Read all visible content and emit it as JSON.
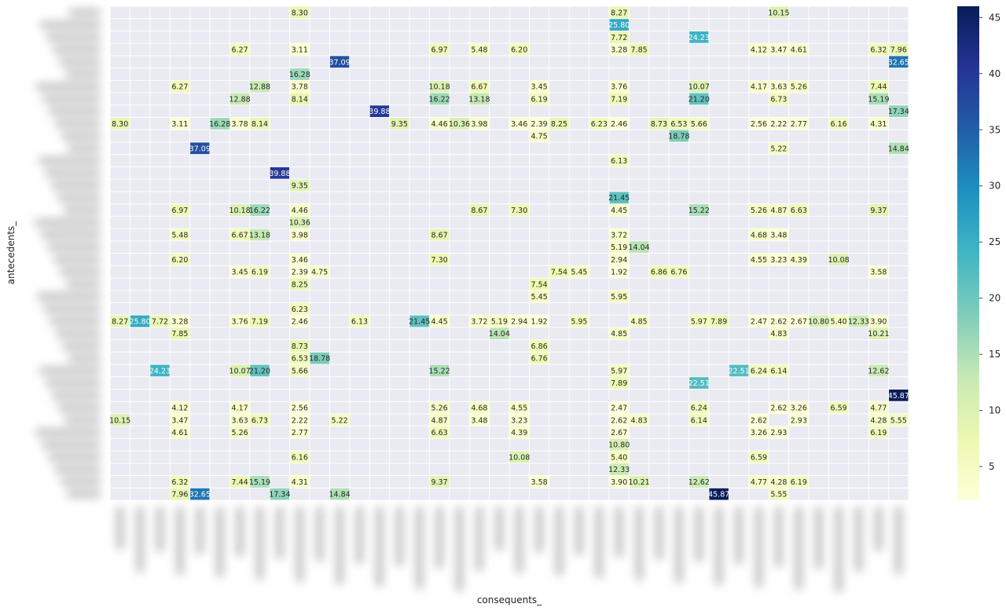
{
  "chart_data": {
    "type": "heatmap",
    "title": "",
    "xlabel": "consequents_",
    "ylabel": "antecedents_",
    "n_rows": 40,
    "n_cols": 40,
    "row_labels_visible": false,
    "col_labels_visible": false,
    "colorbar": {
      "min": 2,
      "max": 46,
      "ticks": [
        5,
        10,
        15,
        20,
        25,
        30,
        35,
        40,
        45
      ],
      "colormap": "YlGnBu"
    },
    "cells": [
      [
        0,
        9,
        8.3
      ],
      [
        0,
        25,
        8.27
      ],
      [
        0,
        33,
        10.15
      ],
      [
        1,
        25,
        25.8
      ],
      [
        2,
        25,
        7.72
      ],
      [
        2,
        29,
        24.23
      ],
      [
        3,
        6,
        6.27
      ],
      [
        3,
        9,
        3.11
      ],
      [
        3,
        16,
        6.97
      ],
      [
        3,
        18,
        5.48
      ],
      [
        3,
        20,
        6.2
      ],
      [
        3,
        25,
        3.28
      ],
      [
        3,
        26,
        7.85
      ],
      [
        3,
        32,
        4.12
      ],
      [
        3,
        33,
        3.47
      ],
      [
        3,
        34,
        4.61
      ],
      [
        3,
        38,
        6.32
      ],
      [
        3,
        39,
        7.96
      ],
      [
        4,
        11,
        37.09
      ],
      [
        4,
        39,
        32.65
      ],
      [
        5,
        9,
        16.28
      ],
      [
        6,
        3,
        6.27
      ],
      [
        6,
        7,
        12.88
      ],
      [
        6,
        9,
        3.78
      ],
      [
        6,
        16,
        10.18
      ],
      [
        6,
        18,
        6.67
      ],
      [
        6,
        21,
        3.45
      ],
      [
        6,
        25,
        3.76
      ],
      [
        6,
        29,
        10.07
      ],
      [
        6,
        32,
        4.17
      ],
      [
        6,
        33,
        3.63
      ],
      [
        6,
        34,
        5.26
      ],
      [
        6,
        38,
        7.44
      ],
      [
        7,
        6,
        12.88
      ],
      [
        7,
        9,
        8.14
      ],
      [
        7,
        16,
        16.22
      ],
      [
        7,
        18,
        13.18
      ],
      [
        7,
        21,
        6.19
      ],
      [
        7,
        25,
        7.19
      ],
      [
        7,
        29,
        21.2
      ],
      [
        7,
        33,
        6.73
      ],
      [
        7,
        38,
        15.19
      ],
      [
        8,
        13,
        39.88
      ],
      [
        8,
        39,
        17.34
      ],
      [
        9,
        0,
        8.3
      ],
      [
        9,
        3,
        3.11
      ],
      [
        9,
        5,
        16.28
      ],
      [
        9,
        6,
        3.78
      ],
      [
        9,
        7,
        8.14
      ],
      [
        9,
        14,
        9.35
      ],
      [
        9,
        16,
        4.46
      ],
      [
        9,
        17,
        10.36
      ],
      [
        9,
        18,
        3.98
      ],
      [
        9,
        20,
        3.46
      ],
      [
        9,
        21,
        2.39
      ],
      [
        9,
        22,
        8.25
      ],
      [
        9,
        24,
        6.23
      ],
      [
        9,
        25,
        2.46
      ],
      [
        9,
        27,
        8.73
      ],
      [
        9,
        28,
        6.53
      ],
      [
        9,
        29,
        5.66
      ],
      [
        9,
        32,
        2.56
      ],
      [
        9,
        33,
        2.22
      ],
      [
        9,
        34,
        2.77
      ],
      [
        9,
        36,
        6.16
      ],
      [
        9,
        38,
        4.31
      ],
      [
        10,
        21,
        4.75
      ],
      [
        10,
        28,
        18.78
      ],
      [
        11,
        4,
        37.09
      ],
      [
        11,
        33,
        5.22
      ],
      [
        11,
        39,
        14.84
      ],
      [
        12,
        25,
        6.13
      ],
      [
        13,
        8,
        39.88
      ],
      [
        14,
        9,
        9.35
      ],
      [
        15,
        25,
        21.45
      ],
      [
        16,
        3,
        6.97
      ],
      [
        16,
        6,
        10.18
      ],
      [
        16,
        7,
        16.22
      ],
      [
        16,
        9,
        4.46
      ],
      [
        16,
        18,
        8.67
      ],
      [
        16,
        20,
        7.3
      ],
      [
        16,
        25,
        4.45
      ],
      [
        16,
        29,
        15.22
      ],
      [
        16,
        32,
        5.26
      ],
      [
        16,
        33,
        4.87
      ],
      [
        16,
        34,
        6.63
      ],
      [
        16,
        38,
        9.37
      ],
      [
        17,
        9,
        10.36
      ],
      [
        18,
        3,
        5.48
      ],
      [
        18,
        6,
        6.67
      ],
      [
        18,
        7,
        13.18
      ],
      [
        18,
        9,
        3.98
      ],
      [
        18,
        16,
        8.67
      ],
      [
        18,
        25,
        3.72
      ],
      [
        18,
        32,
        4.68
      ],
      [
        18,
        33,
        3.48
      ],
      [
        19,
        25,
        5.19
      ],
      [
        19,
        26,
        14.04
      ],
      [
        20,
        3,
        6.2
      ],
      [
        20,
        9,
        3.46
      ],
      [
        20,
        16,
        7.3
      ],
      [
        20,
        25,
        2.94
      ],
      [
        20,
        32,
        4.55
      ],
      [
        20,
        33,
        3.23
      ],
      [
        20,
        34,
        4.39
      ],
      [
        20,
        36,
        10.08
      ],
      [
        21,
        6,
        3.45
      ],
      [
        21,
        7,
        6.19
      ],
      [
        21,
        9,
        2.39
      ],
      [
        21,
        10,
        4.75
      ],
      [
        21,
        22,
        7.54
      ],
      [
        21,
        23,
        5.45
      ],
      [
        21,
        25,
        1.92
      ],
      [
        21,
        27,
        6.86
      ],
      [
        21,
        28,
        6.76
      ],
      [
        21,
        38,
        3.58
      ],
      [
        22,
        9,
        8.25
      ],
      [
        22,
        21,
        7.54
      ],
      [
        23,
        21,
        5.45
      ],
      [
        23,
        25,
        5.95
      ],
      [
        24,
        9,
        6.23
      ],
      [
        25,
        0,
        8.27
      ],
      [
        25,
        1,
        25.8
      ],
      [
        25,
        2,
        7.72
      ],
      [
        25,
        3,
        3.28
      ],
      [
        25,
        6,
        3.76
      ],
      [
        25,
        7,
        7.19
      ],
      [
        25,
        9,
        2.46
      ],
      [
        25,
        12,
        6.13
      ],
      [
        25,
        15,
        21.45
      ],
      [
        25,
        16,
        4.45
      ],
      [
        25,
        18,
        3.72
      ],
      [
        25,
        19,
        5.19
      ],
      [
        25,
        20,
        2.94
      ],
      [
        25,
        21,
        1.92
      ],
      [
        25,
        23,
        5.95
      ],
      [
        25,
        26,
        4.85
      ],
      [
        25,
        29,
        5.97
      ],
      [
        25,
        30,
        7.89
      ],
      [
        25,
        32,
        2.47
      ],
      [
        25,
        33,
        2.62
      ],
      [
        25,
        34,
        2.67
      ],
      [
        25,
        35,
        10.8
      ],
      [
        25,
        36,
        5.4
      ],
      [
        25,
        37,
        12.33
      ],
      [
        25,
        38,
        3.9
      ],
      [
        26,
        3,
        7.85
      ],
      [
        26,
        19,
        14.04
      ],
      [
        26,
        25,
        4.85
      ],
      [
        26,
        33,
        4.83
      ],
      [
        26,
        38,
        10.21
      ],
      [
        27,
        9,
        8.73
      ],
      [
        27,
        21,
        6.86
      ],
      [
        28,
        9,
        6.53
      ],
      [
        28,
        10,
        18.78
      ],
      [
        28,
        21,
        6.76
      ],
      [
        29,
        2,
        24.23
      ],
      [
        29,
        6,
        10.07
      ],
      [
        29,
        7,
        21.2
      ],
      [
        29,
        9,
        5.66
      ],
      [
        29,
        16,
        15.22
      ],
      [
        29,
        25,
        5.97
      ],
      [
        29,
        31,
        22.51
      ],
      [
        29,
        32,
        6.24
      ],
      [
        29,
        33,
        6.14
      ],
      [
        29,
        38,
        12.62
      ],
      [
        30,
        25,
        7.89
      ],
      [
        30,
        29,
        22.51
      ],
      [
        31,
        39,
        45.87
      ],
      [
        32,
        3,
        4.12
      ],
      [
        32,
        6,
        4.17
      ],
      [
        32,
        9,
        2.56
      ],
      [
        32,
        16,
        5.26
      ],
      [
        32,
        18,
        4.68
      ],
      [
        32,
        20,
        4.55
      ],
      [
        32,
        25,
        2.47
      ],
      [
        32,
        29,
        6.24
      ],
      [
        32,
        33,
        2.62
      ],
      [
        32,
        34,
        3.26
      ],
      [
        32,
        36,
        6.59
      ],
      [
        32,
        38,
        4.77
      ],
      [
        33,
        0,
        10.15
      ],
      [
        33,
        3,
        3.47
      ],
      [
        33,
        6,
        3.63
      ],
      [
        33,
        7,
        6.73
      ],
      [
        33,
        9,
        2.22
      ],
      [
        33,
        11,
        5.22
      ],
      [
        33,
        16,
        4.87
      ],
      [
        33,
        18,
        3.48
      ],
      [
        33,
        20,
        3.23
      ],
      [
        33,
        25,
        2.62
      ],
      [
        33,
        26,
        4.83
      ],
      [
        33,
        29,
        6.14
      ],
      [
        33,
        32,
        2.62
      ],
      [
        33,
        34,
        2.93
      ],
      [
        33,
        38,
        4.28
      ],
      [
        33,
        39,
        5.55
      ],
      [
        34,
        3,
        4.61
      ],
      [
        34,
        6,
        5.26
      ],
      [
        34,
        9,
        2.77
      ],
      [
        34,
        16,
        6.63
      ],
      [
        34,
        20,
        4.39
      ],
      [
        34,
        25,
        2.67
      ],
      [
        34,
        32,
        3.26
      ],
      [
        34,
        33,
        2.93
      ],
      [
        34,
        38,
        6.19
      ],
      [
        35,
        25,
        10.8
      ],
      [
        36,
        9,
        6.16
      ],
      [
        36,
        20,
        10.08
      ],
      [
        36,
        25,
        5.4
      ],
      [
        36,
        32,
        6.59
      ],
      [
        37,
        25,
        12.33
      ],
      [
        38,
        3,
        6.32
      ],
      [
        38,
        6,
        7.44
      ],
      [
        38,
        7,
        15.19
      ],
      [
        38,
        9,
        4.31
      ],
      [
        38,
        16,
        9.37
      ],
      [
        38,
        21,
        3.58
      ],
      [
        38,
        25,
        3.9
      ],
      [
        38,
        26,
        10.21
      ],
      [
        38,
        29,
        12.62
      ],
      [
        38,
        32,
        4.77
      ],
      [
        38,
        33,
        4.28
      ],
      [
        38,
        34,
        6.19
      ],
      [
        39,
        3,
        7.96
      ],
      [
        39,
        4,
        32.65
      ],
      [
        39,
        8,
        17.34
      ],
      [
        39,
        11,
        14.84
      ],
      [
        39,
        30,
        45.87
      ],
      [
        39,
        33,
        5.55
      ]
    ]
  }
}
